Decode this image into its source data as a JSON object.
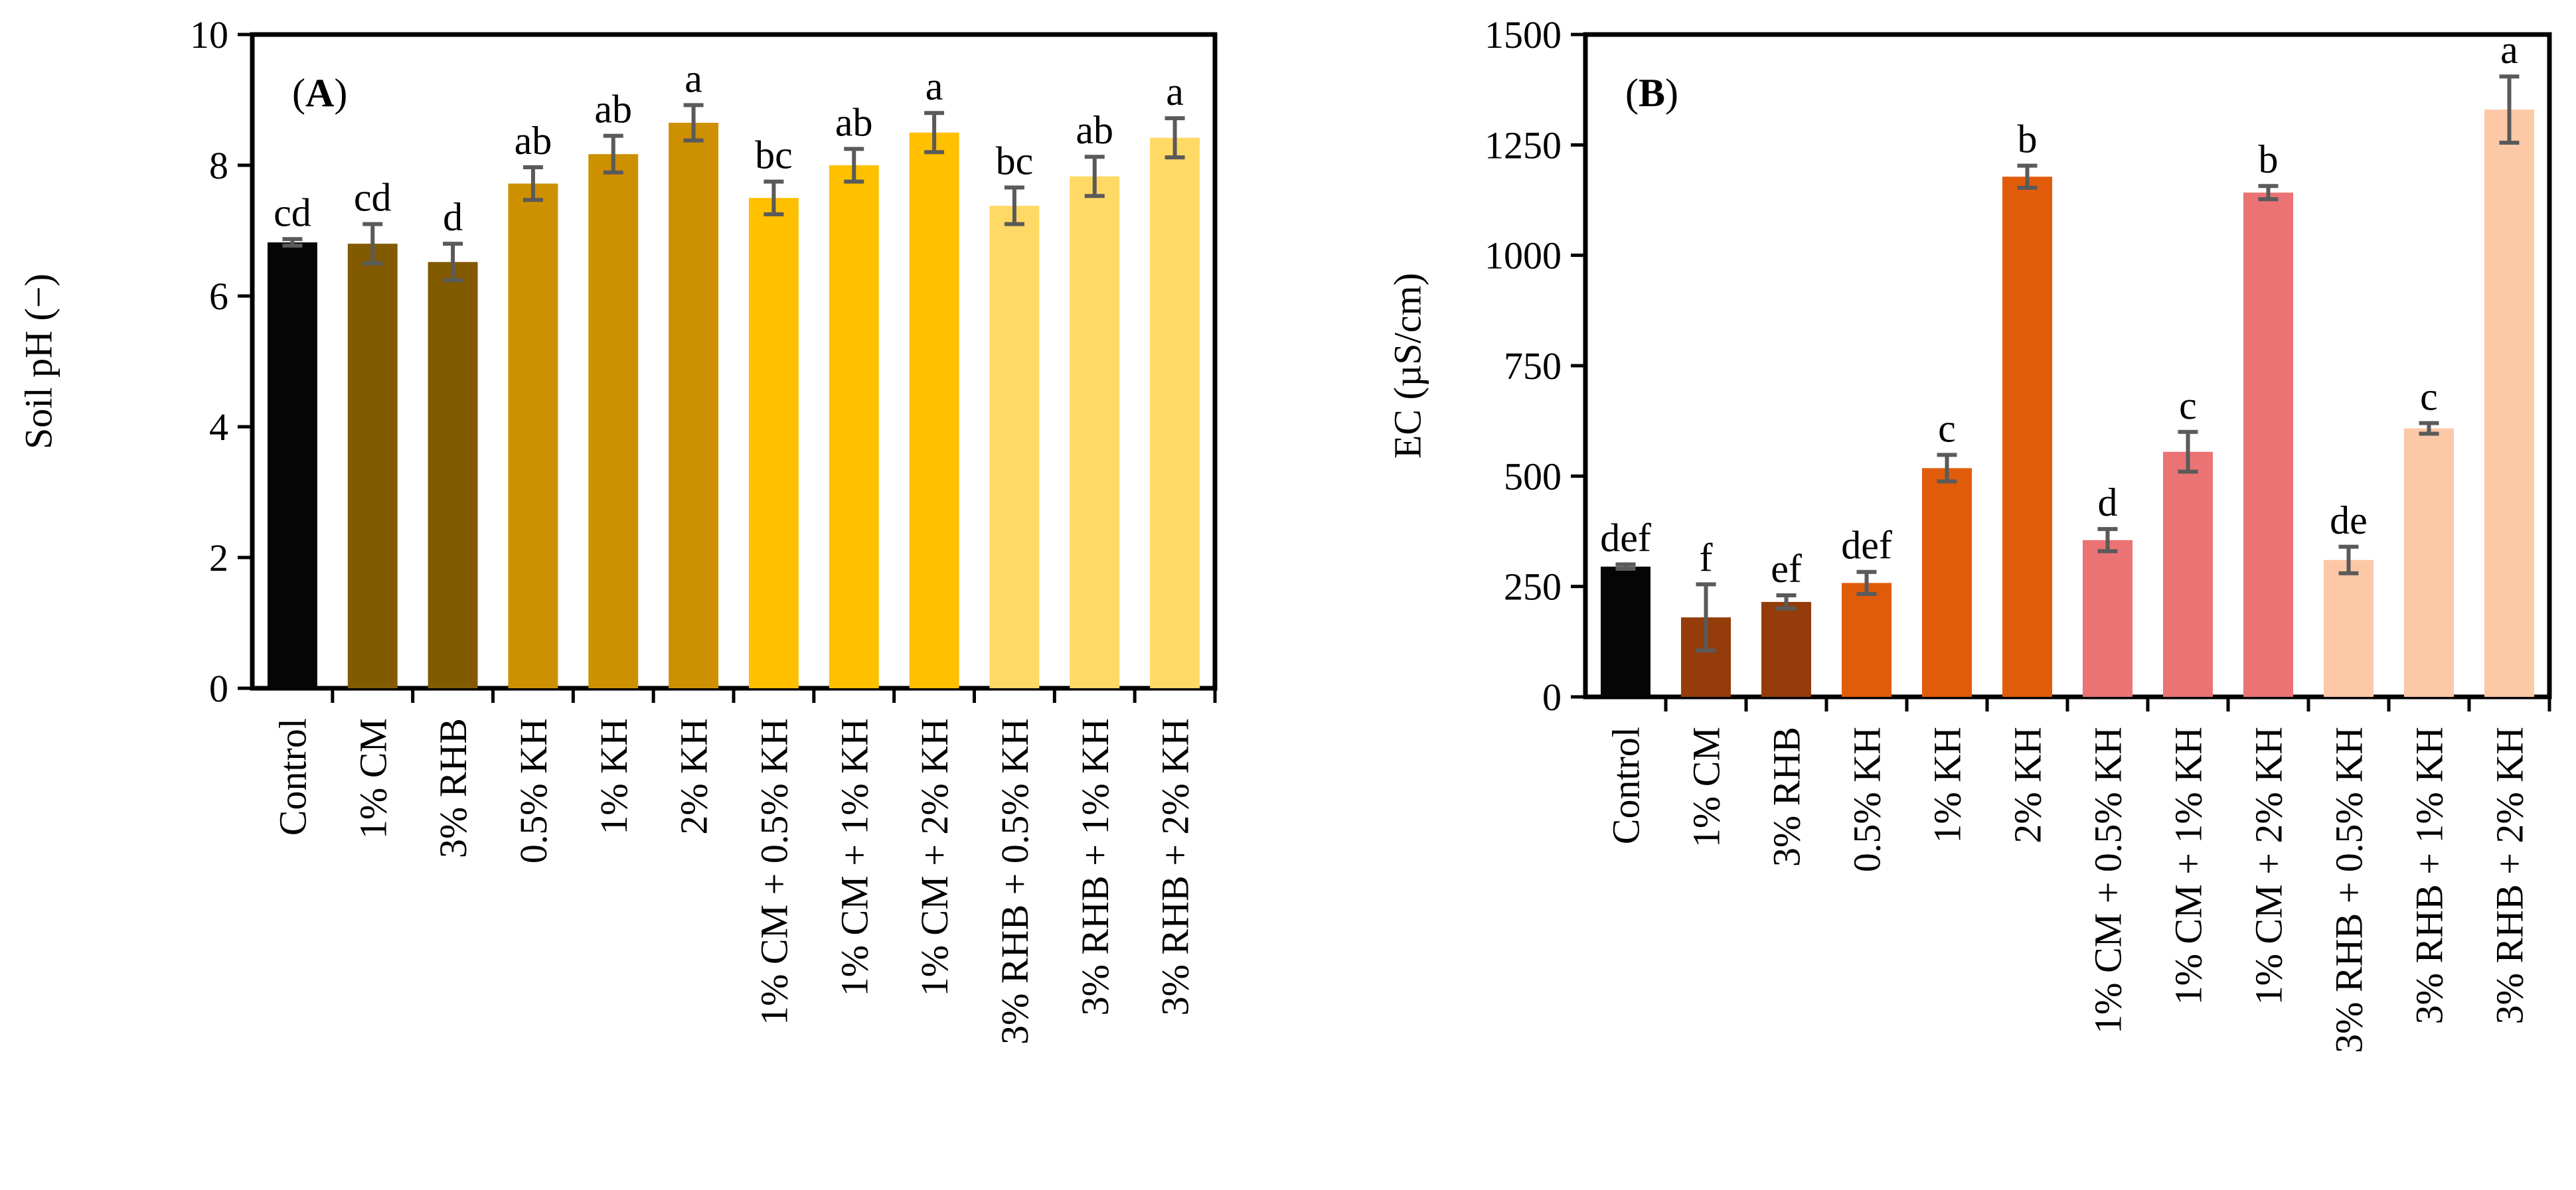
{
  "chart_data": [
    {
      "type": "bar",
      "panel": "A",
      "title": "",
      "xlabel": "",
      "ylabel": "Soil pH (−)",
      "ylim": [
        0,
        10
      ],
      "yticks": [
        "0",
        "2",
        "4",
        "6",
        "8",
        "10"
      ],
      "tick_values": [
        0,
        2,
        4,
        6,
        8,
        10
      ],
      "categories": [
        "Control",
        "1% CM",
        "3% RHB",
        "0.5% KH",
        "1% KH",
        "2% KH",
        "1% CM + 0.5% KH",
        "1% CM + 1% KH",
        "1% CM + 2% KH",
        "3% RHB + 0.5% KH",
        "3% RHB + 1% KH",
        "3% RHB + 2% KH"
      ],
      "values": [
        6.82,
        6.8,
        6.52,
        7.72,
        8.17,
        8.65,
        7.5,
        8.0,
        8.5,
        7.38,
        7.83,
        8.42
      ],
      "errors": [
        0.05,
        0.3,
        0.28,
        0.25,
        0.28,
        0.27,
        0.25,
        0.25,
        0.3,
        0.28,
        0.3,
        0.3
      ],
      "significance": [
        "cd",
        "cd",
        "d",
        "ab",
        "ab",
        "a",
        "bc",
        "ab",
        "a",
        "bc",
        "ab",
        "a"
      ],
      "colors": [
        "#050505",
        "#825A00",
        "#825A00",
        "#CD9000",
        "#CD9000",
        "#CD9000",
        "#FFC000",
        "#FFC000",
        "#FFC000",
        "#FFD966",
        "#FFD966",
        "#FFD966"
      ],
      "legend": "none"
    },
    {
      "type": "bar",
      "panel": "B",
      "title": "",
      "xlabel": "",
      "ylabel": "EC (µS/cm)",
      "ylim": [
        0,
        1500
      ],
      "yticks": [
        "0",
        "250",
        "500",
        "750",
        "1000",
        "1250",
        "1500"
      ],
      "tick_values": [
        0,
        250,
        500,
        750,
        1000,
        1250,
        1500
      ],
      "categories": [
        "Control",
        "1% CM",
        "3% RHB",
        "0.5% KH",
        "1% KH",
        "2% KH",
        "1% CM + 0.5% KH",
        "1% CM + 1% KH",
        "1% CM + 2% KH",
        "3% RHB + 0.5% KH",
        "3% RHB + 1% KH",
        "3% RHB + 2% KH"
      ],
      "values": [
        295,
        180,
        215,
        258,
        518,
        1178,
        355,
        555,
        1142,
        310,
        608,
        1330
      ],
      "errors": [
        5,
        75,
        15,
        25,
        30,
        25,
        25,
        45,
        15,
        30,
        12,
        75
      ],
      "significance": [
        "def",
        "f",
        "ef",
        "def",
        "c",
        "b",
        "d",
        "c",
        "b",
        "de",
        "c",
        "a"
      ],
      "colors": [
        "#050505",
        "#943C0A",
        "#943C0A",
        "#E05C0A",
        "#E05C0A",
        "#E05C0A",
        "#EB7373",
        "#EB7373",
        "#EB7373",
        "#FDC8A6",
        "#FDC8A6",
        "#FDC8A6"
      ],
      "legend": "none"
    }
  ]
}
